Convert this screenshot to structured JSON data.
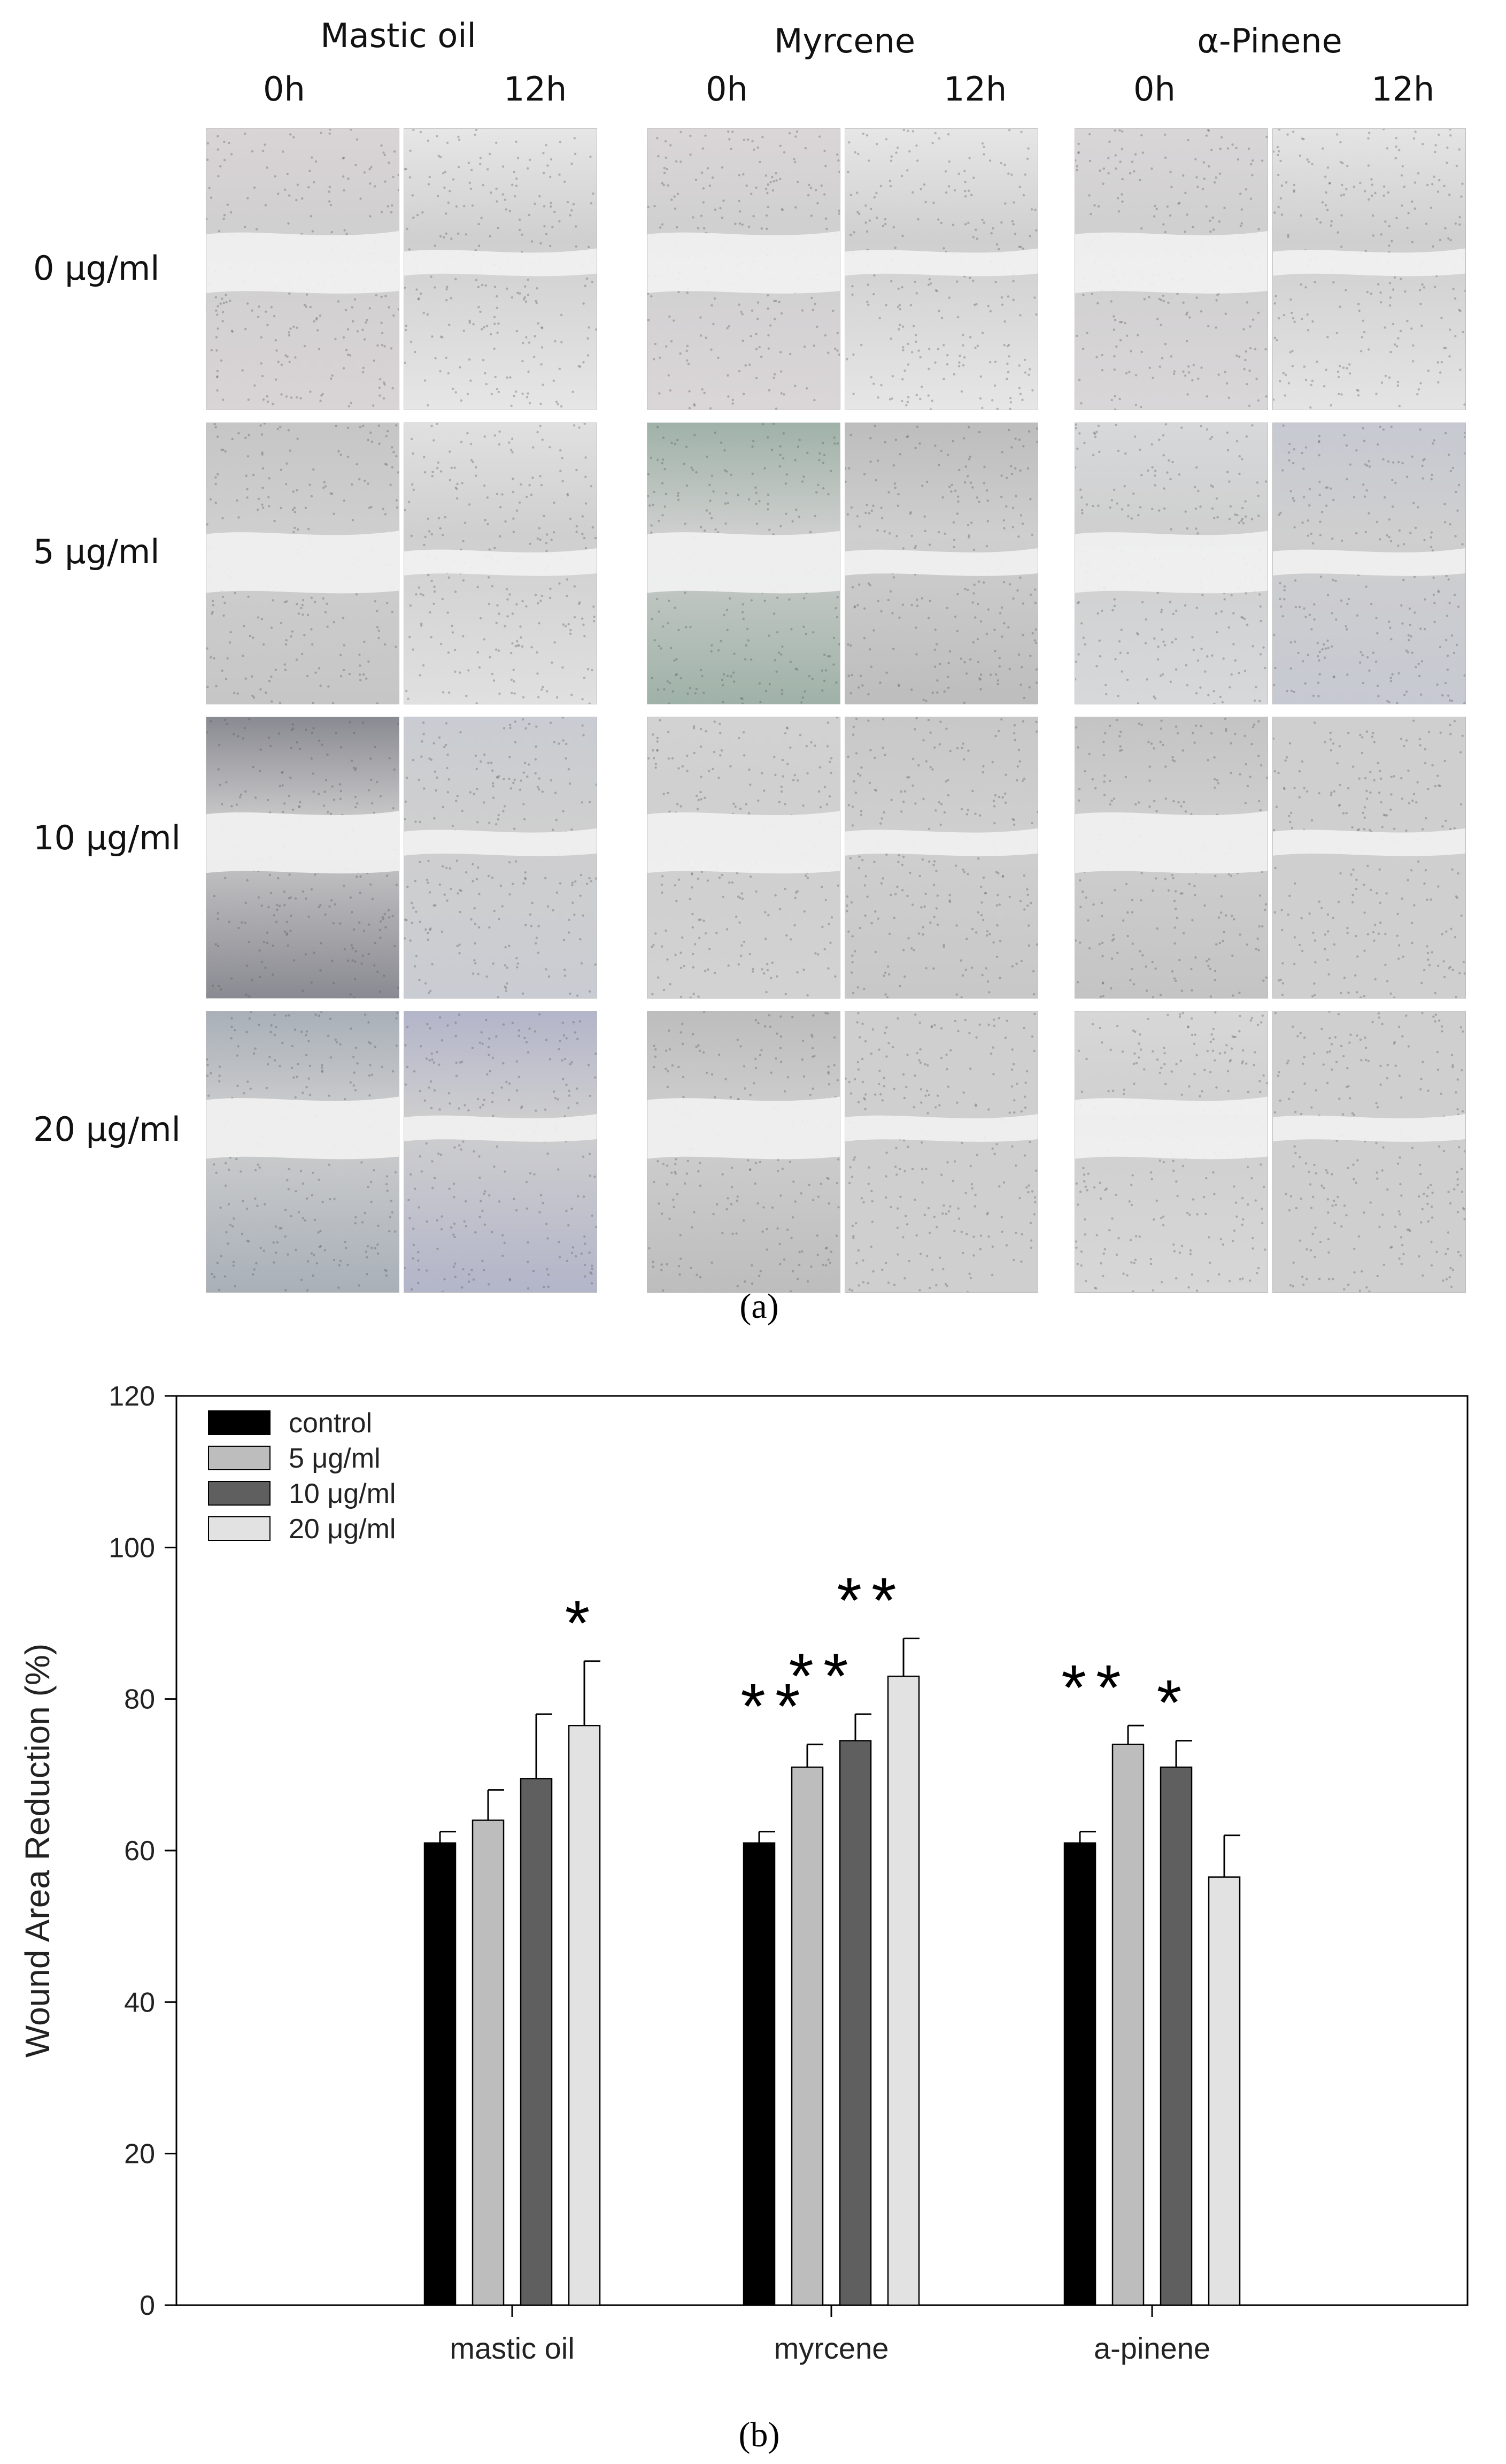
{
  "panel_a": {
    "caption": "(a)",
    "groups": [
      {
        "title": "Mastic oil",
        "time_labels": [
          "0h",
          "12h"
        ]
      },
      {
        "title": "Myrcene",
        "time_labels": [
          "0h",
          "12h"
        ]
      },
      {
        "title": "α-Pinene",
        "time_labels": [
          "0h",
          "12h"
        ]
      }
    ],
    "row_labels": [
      "0 μg/ml",
      "5 μg/ml",
      "10 μg/ml",
      "20 μg/ml"
    ]
  },
  "panel_b": {
    "caption": "(b)"
  },
  "chart_data": {
    "type": "bar",
    "title": "",
    "xlabel": "",
    "ylabel": "Wound Area Reduction (%)",
    "ylim": [
      0,
      120
    ],
    "yticks": [
      0,
      20,
      40,
      60,
      80,
      100,
      120
    ],
    "categories": [
      "mastic oil",
      "myrcene",
      "a-pinene"
    ],
    "legend_position": "top-left",
    "series": [
      {
        "name": "control",
        "color": "#000000",
        "values": [
          61,
          61,
          61
        ],
        "errors": [
          1.5,
          1.5,
          1.5
        ],
        "significance": [
          "",
          "",
          ""
        ]
      },
      {
        "name": "5 μg/ml",
        "color": "#bdbdbd",
        "values": [
          64,
          71,
          74
        ],
        "errors": [
          4,
          3,
          2.5
        ],
        "significance": [
          "",
          "**",
          "**"
        ]
      },
      {
        "name": "10 μg/ml",
        "color": "#5f5f5f",
        "values": [
          69.5,
          74.5,
          71
        ],
        "errors": [
          8.5,
          3.5,
          3.5
        ],
        "significance": [
          "",
          "**",
          "*"
        ]
      },
      {
        "name": "20 μg/ml",
        "color": "#e2e2e2",
        "values": [
          76.5,
          83,
          56.5
        ],
        "errors": [
          8.5,
          5,
          5.5
        ],
        "significance": [
          "*",
          "**",
          ""
        ]
      }
    ]
  }
}
